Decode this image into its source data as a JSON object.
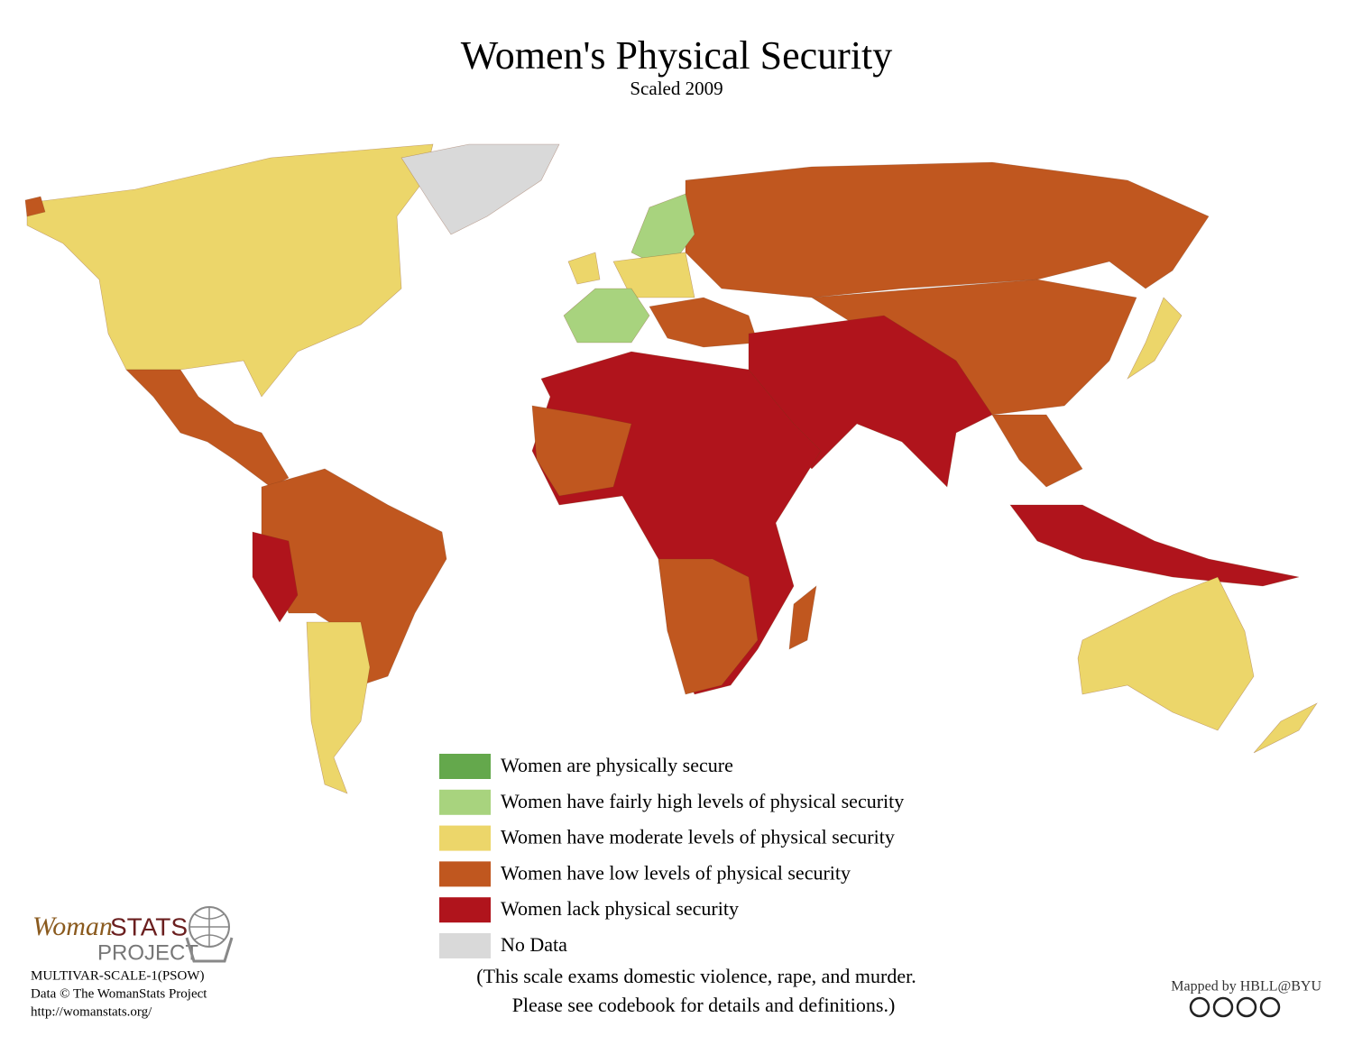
{
  "header": {
    "title": "Women's Physical Security",
    "subtitle": "Scaled 2009"
  },
  "legend": {
    "items": [
      {
        "label": "Women are physically secure",
        "color": "#64a84c"
      },
      {
        "label": "Women have fairly high levels of physical security",
        "color": "#a8d37e"
      },
      {
        "label": "Women have moderate levels of physical security",
        "color": "#ecd66a"
      },
      {
        "label": "Women have low levels of physical security",
        "color": "#c0571f"
      },
      {
        "label": "Women lack physical security",
        "color": "#b0141c"
      },
      {
        "label": "No Data",
        "color": "#d9d9d9"
      }
    ],
    "note": [
      "(This scale exams domestic violence, rape, and murder.",
      "Please see codebook for details and definitions.)"
    ]
  },
  "logo": {
    "name": "Woman",
    "stats": "STATS",
    "project": "PROJECT"
  },
  "footer": {
    "code": "MULTIVAR-SCALE-1(PSOW)",
    "copyright": "Data © The WomanStats Project",
    "url": "http://womanstats.org/",
    "credit": "Mapped by HBLL@BYU"
  }
}
